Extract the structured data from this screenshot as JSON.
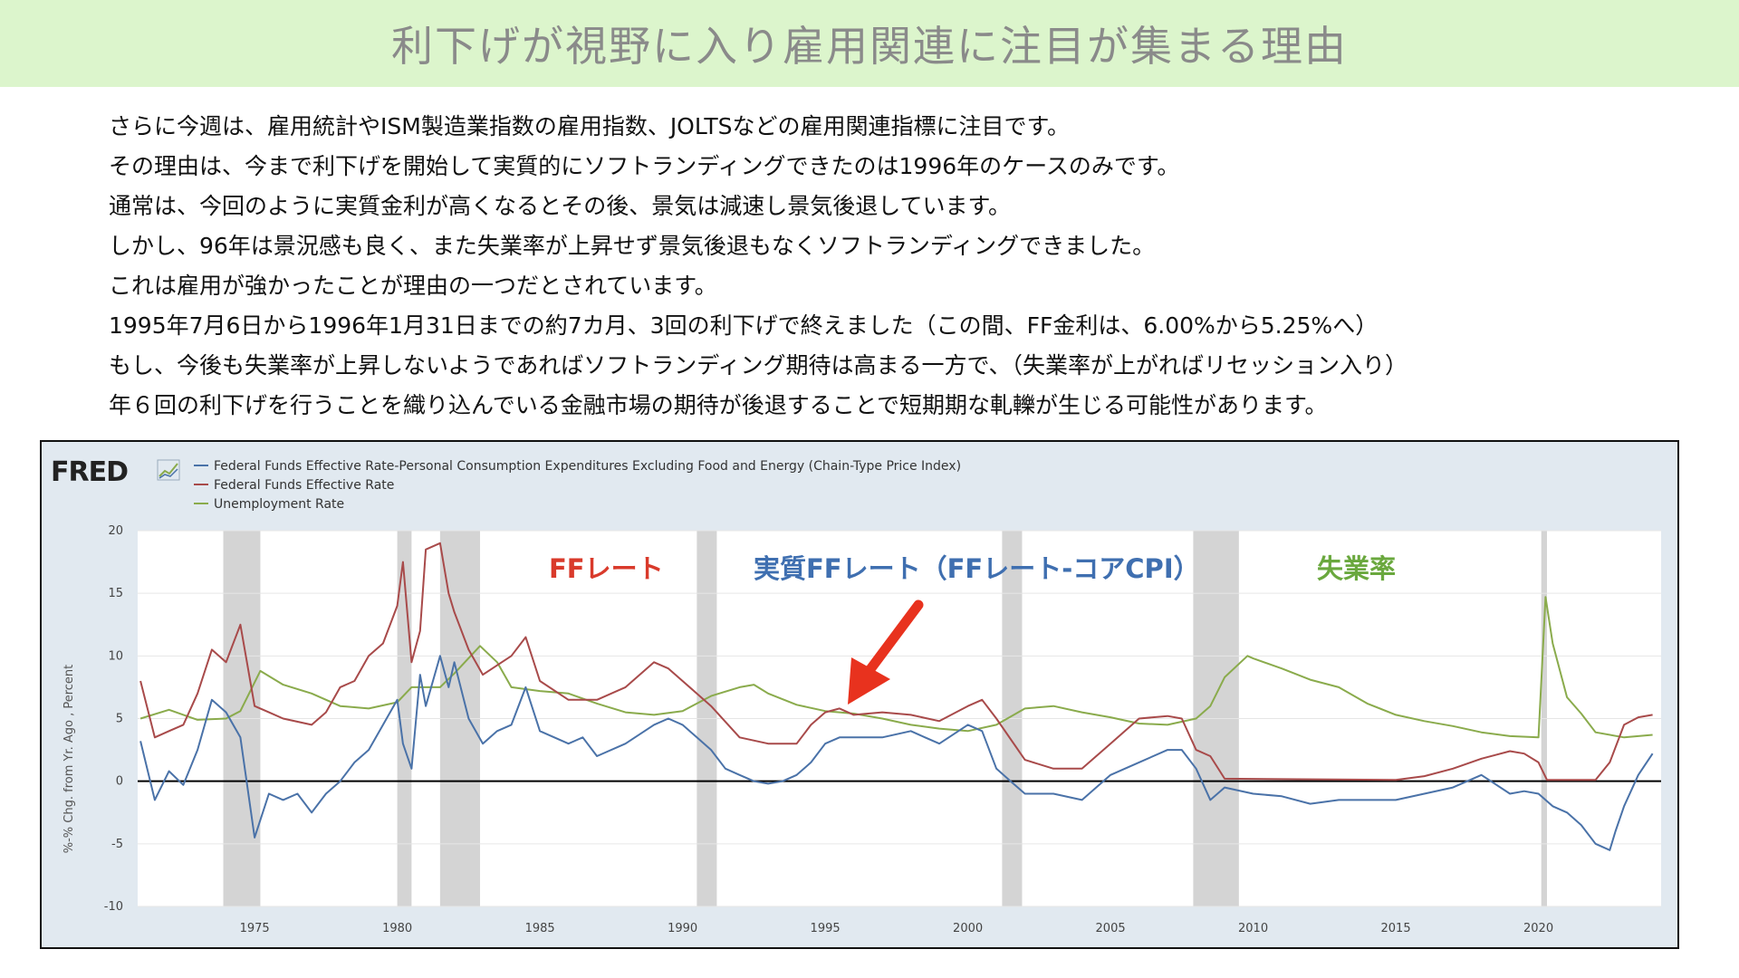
{
  "header": {
    "title": "利下げが視野に入り雇用関連に注目が集まる理由"
  },
  "paragraphs": [
    "さらに今週は、雇用統計やISM製造業指数の雇用指数、JOLTSなどの雇用関連指標に注目です。",
    "その理由は、今まで利下げを開始して実質的にソフトランディングできたのは1996年のケースのみです。",
    "通常は、今回のように実質金利が高くなるとその後、景気は減速し景気後退しています。",
    "しかし、96年は景況感も良く、また失業率が上昇せず景気後退もなくソフトランディングできました。",
    "これは雇用が強かったことが理由の一つだとされています。",
    "1995年7月6日から1996年1月31日までの約7カ月、3回の利下げで終えました（この間、FF金利は、6.00%から5.25%へ）",
    "もし、今後も失業率が上昇しないようであればソフトランディング期待は高まる一方で、（失業率が上がればリセッション入り）",
    "年６回の利下げを行うことを織り込んでいる金融市場の期待が後退することで短期期な軋轢が生じる可能性があります。"
  ],
  "colors": {
    "title_bg": "#dcf5cc",
    "chart_bg": "#e1e9f0",
    "real_rate": "#4a72a8",
    "ff_rate": "#a84a4a",
    "unemployment": "#8aab4c",
    "recession": "#d4d4d4",
    "arrow": "#e8321e"
  },
  "chart_data": {
    "type": "line",
    "logo": "FRED",
    "ylabel": "%-% Chg. from Yr. Ago , Percent",
    "ylim": [
      -10,
      20
    ],
    "xlim": [
      1970.9,
      2024.3
    ],
    "y_ticks": [
      "20",
      "15",
      "10",
      "5",
      "0",
      "-5",
      "-10"
    ],
    "x_ticks": [
      "1975",
      "1980",
      "1985",
      "1990",
      "1995",
      "2000",
      "2005",
      "2010",
      "2015",
      "2020"
    ],
    "grid": true,
    "legend_position": "top-left",
    "recessions": [
      [
        1973.9,
        1975.2
      ],
      [
        1980.0,
        1980.5
      ],
      [
        1981.5,
        1982.9
      ],
      [
        1990.5,
        1991.2
      ],
      [
        2001.2,
        2001.9
      ],
      [
        2007.9,
        2009.5
      ],
      [
        2020.1,
        2020.3
      ]
    ],
    "annotations": {
      "ff": "FFレート",
      "real": "実質FFレート（FFレート-コアCPI）",
      "unemp": "失業率"
    },
    "series": [
      {
        "name": "Federal Funds Effective Rate-Personal Consumption Expenditures Excluding Food and Energy (Chain-Type Price Index)",
        "x": [
          1971.0,
          1971.5,
          1972.0,
          1972.5,
          1973.0,
          1973.5,
          1974.0,
          1974.5,
          1975.0,
          1975.5,
          1976.0,
          1976.5,
          1977.0,
          1977.5,
          1978.0,
          1978.5,
          1979.0,
          1979.5,
          1980.0,
          1980.2,
          1980.5,
          1980.8,
          1981.0,
          1981.5,
          1981.8,
          1982.0,
          1982.5,
          1983.0,
          1983.5,
          1984.0,
          1984.5,
          1985.0,
          1986.0,
          1986.5,
          1987.0,
          1988.0,
          1989.0,
          1989.5,
          1990.0,
          1990.5,
          1991.0,
          1991.5,
          1992.0,
          1992.5,
          1993.0,
          1993.5,
          1994.0,
          1994.5,
          1995.0,
          1995.5,
          1996.0,
          1997.0,
          1998.0,
          1998.5,
          1999.0,
          2000.0,
          2000.5,
          2001.0,
          2001.5,
          2002.0,
          2003.0,
          2004.0,
          2005.0,
          2006.0,
          2007.0,
          2007.5,
          2008.0,
          2008.5,
          2009.0,
          2010.0,
          2011.0,
          2012.0,
          2013.0,
          2014.0,
          2015.0,
          2016.0,
          2017.0,
          2018.0,
          2019.0,
          2019.5,
          2020.0,
          2020.5,
          2021.0,
          2021.5,
          2022.0,
          2022.5,
          2022.7,
          2023.0,
          2023.5,
          2024.0
        ],
        "values": [
          3.2,
          -1.5,
          0.8,
          -0.3,
          2.5,
          6.5,
          5.5,
          3.5,
          -4.5,
          -1.0,
          -1.5,
          -1.0,
          -2.5,
          -1.0,
          0.0,
          1.5,
          2.5,
          4.5,
          6.5,
          3.0,
          1.0,
          8.5,
          6.0,
          10.0,
          7.5,
          9.5,
          5.0,
          3.0,
          4.0,
          4.5,
          7.5,
          4.0,
          3.0,
          3.5,
          2.0,
          3.0,
          4.5,
          5.0,
          4.5,
          3.5,
          2.5,
          1.0,
          0.5,
          0.0,
          -0.2,
          0.0,
          0.5,
          1.5,
          3.0,
          3.5,
          3.5,
          3.5,
          4.0,
          3.5,
          3.0,
          4.5,
          4.0,
          1.0,
          0.0,
          -1.0,
          -1.0,
          -1.5,
          0.5,
          1.5,
          2.5,
          2.5,
          1.0,
          -1.5,
          -0.5,
          -1.0,
          -1.2,
          -1.8,
          -1.5,
          -1.5,
          -1.5,
          -1.0,
          -0.5,
          0.5,
          -1.0,
          -0.8,
          -1.0,
          -2.0,
          -2.5,
          -3.5,
          -5.0,
          -5.5,
          -4.0,
          -2.0,
          0.5,
          2.2
        ]
      },
      {
        "name": "Federal Funds Effective Rate",
        "x": [
          1971.0,
          1971.5,
          1972.0,
          1972.5,
          1973.0,
          1973.5,
          1974.0,
          1974.5,
          1975.0,
          1975.5,
          1976.0,
          1977.0,
          1977.5,
          1978.0,
          1978.5,
          1979.0,
          1979.5,
          1980.0,
          1980.2,
          1980.5,
          1980.8,
          1981.0,
          1981.5,
          1981.8,
          1982.0,
          1982.5,
          1983.0,
          1984.0,
          1984.5,
          1985.0,
          1986.0,
          1987.0,
          1988.0,
          1989.0,
          1989.5,
          1990.0,
          1991.0,
          1992.0,
          1993.0,
          1994.0,
          1994.5,
          1995.0,
          1995.5,
          1996.0,
          1997.0,
          1998.0,
          1999.0,
          2000.0,
          2000.5,
          2001.0,
          2002.0,
          2003.0,
          2004.0,
          2005.0,
          2006.0,
          2007.0,
          2007.5,
          2008.0,
          2008.5,
          2009.0,
          2015.0,
          2016.0,
          2017.0,
          2018.0,
          2019.0,
          2019.5,
          2020.0,
          2020.3,
          2021.0,
          2022.0,
          2022.5,
          2023.0,
          2023.5,
          2024.0
        ],
        "values": [
          8.0,
          3.5,
          4.0,
          4.5,
          7.0,
          10.5,
          9.5,
          12.5,
          6.0,
          5.5,
          5.0,
          4.5,
          5.5,
          7.5,
          8.0,
          10.0,
          11.0,
          14.0,
          17.5,
          9.5,
          12.0,
          18.5,
          19.0,
          15.0,
          13.5,
          10.5,
          8.5,
          10.0,
          11.5,
          8.0,
          6.5,
          6.5,
          7.5,
          9.5,
          9.0,
          8.0,
          6.0,
          3.5,
          3.0,
          3.0,
          4.5,
          5.5,
          5.8,
          5.3,
          5.5,
          5.3,
          4.8,
          6.0,
          6.5,
          5.0,
          1.7,
          1.0,
          1.0,
          3.0,
          5.0,
          5.2,
          5.0,
          2.5,
          2.0,
          0.2,
          0.1,
          0.4,
          1.0,
          1.8,
          2.4,
          2.2,
          1.5,
          0.1,
          0.1,
          0.1,
          1.5,
          4.5,
          5.1,
          5.3
        ]
      },
      {
        "name": "Unemployment Rate",
        "x": [
          1971.0,
          1972.0,
          1973.0,
          1974.0,
          1974.5,
          1975.2,
          1976.0,
          1977.0,
          1978.0,
          1979.0,
          1980.0,
          1980.5,
          1981.0,
          1981.5,
          1982.0,
          1982.9,
          1983.5,
          1984.0,
          1985.0,
          1986.0,
          1987.0,
          1988.0,
          1989.0,
          1990.0,
          1991.0,
          1992.0,
          1992.5,
          1993.0,
          1994.0,
          1995.0,
          1996.0,
          1997.0,
          1998.0,
          1999.0,
          2000.0,
          2001.0,
          2002.0,
          2003.0,
          2004.0,
          2005.0,
          2006.0,
          2007.0,
          2008.0,
          2008.5,
          2009.0,
          2009.8,
          2010.0,
          2011.0,
          2012.0,
          2013.0,
          2014.0,
          2015.0,
          2016.0,
          2017.0,
          2018.0,
          2019.0,
          2020.0,
          2020.25,
          2020.5,
          2021.0,
          2021.5,
          2022.0,
          2023.0,
          2024.0
        ],
        "values": [
          5.0,
          5.7,
          4.9,
          5.0,
          5.6,
          8.8,
          7.7,
          7.0,
          6.0,
          5.8,
          6.3,
          7.5,
          7.5,
          7.5,
          8.6,
          10.8,
          9.5,
          7.5,
          7.2,
          7.0,
          6.2,
          5.5,
          5.3,
          5.6,
          6.8,
          7.5,
          7.7,
          7.0,
          6.1,
          5.6,
          5.4,
          5.0,
          4.5,
          4.2,
          4.0,
          4.5,
          5.8,
          6.0,
          5.5,
          5.1,
          4.6,
          4.5,
          5.0,
          6.0,
          8.3,
          10.0,
          9.8,
          9.0,
          8.1,
          7.5,
          6.2,
          5.3,
          4.8,
          4.4,
          3.9,
          3.6,
          3.5,
          14.7,
          11.0,
          6.7,
          5.4,
          3.9,
          3.5,
          3.7
        ]
      }
    ]
  }
}
